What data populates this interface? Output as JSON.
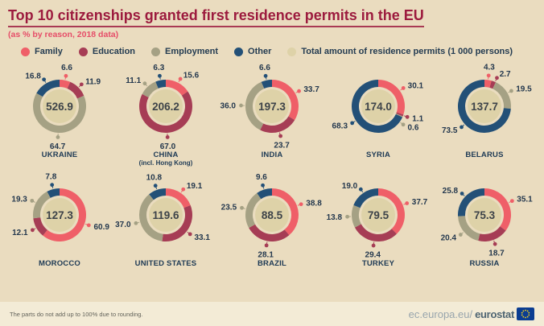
{
  "header": {
    "title": "Top 10 citizenships granted first residence permits in the EU",
    "subtitle": "(as % by reason, 2018 data)"
  },
  "legend": {
    "items": [
      {
        "label": "Family",
        "color": "#ef5f68"
      },
      {
        "label": "Education",
        "color": "#a63d55"
      },
      {
        "label": "Employment",
        "color": "#a5a184"
      },
      {
        "label": "Other",
        "color": "#235077"
      },
      {
        "label": "Total amount of residence permits (1 000 persons)",
        "color": "#ded2a8"
      }
    ]
  },
  "chart_data": {
    "type": "donut",
    "unit": "% of first residence permits by reason, 2018",
    "center_metric": "Total amount of residence permits (1 000 persons)",
    "reasons": [
      "Family",
      "Education",
      "Employment",
      "Other"
    ],
    "colors": {
      "Family": "#ef5f68",
      "Education": "#a63d55",
      "Employment": "#a5a184",
      "Other": "#235077",
      "total_fill": "#ded2a8"
    },
    "countries": [
      {
        "name": "UKRAINE",
        "total": 526.9,
        "values": {
          "Family": 6.6,
          "Education": 11.9,
          "Employment": 64.7,
          "Other": 16.8
        }
      },
      {
        "name": "CHINA",
        "name2": "(incl. Hong Kong)",
        "total": 206.2,
        "values": {
          "Family": 15.6,
          "Education": 67.0,
          "Employment": 11.1,
          "Other": 6.3
        }
      },
      {
        "name": "INDIA",
        "total": 197.3,
        "values": {
          "Family": 33.7,
          "Education": 23.7,
          "Employment": 36.0,
          "Other": 6.6
        }
      },
      {
        "name": "SYRIA",
        "total": 174.0,
        "values": {
          "Family": 30.1,
          "Education": 1.1,
          "Employment": 0.6,
          "Other": 68.3
        }
      },
      {
        "name": "BELARUS",
        "total": 137.7,
        "values": {
          "Family": 4.3,
          "Education": 2.7,
          "Employment": 19.5,
          "Other": 73.5
        }
      },
      {
        "name": "MOROCCO",
        "total": 127.3,
        "values": {
          "Family": 60.9,
          "Education": 12.1,
          "Employment": 19.3,
          "Other": 7.8
        }
      },
      {
        "name": "UNITED STATES",
        "total": 119.6,
        "values": {
          "Family": 19.1,
          "Education": 33.1,
          "Employment": 37.0,
          "Other": 10.8
        }
      },
      {
        "name": "BRAZIL",
        "total": 88.5,
        "values": {
          "Family": 38.8,
          "Education": 28.1,
          "Employment": 23.5,
          "Other": 9.6
        }
      },
      {
        "name": "TURKEY",
        "total": 79.5,
        "values": {
          "Family": 37.7,
          "Education": 29.4,
          "Employment": 13.8,
          "Other": 19.0
        }
      },
      {
        "name": "RUSSIA",
        "total": 75.3,
        "values": {
          "Family": 35.1,
          "Education": 18.7,
          "Employment": 20.4,
          "Other": 25.8
        }
      }
    ]
  },
  "footer": {
    "note": "The parts do not add up to 100% due to rounding.",
    "url_prefix": "ec.europa.eu/",
    "brand": "eurostat"
  }
}
